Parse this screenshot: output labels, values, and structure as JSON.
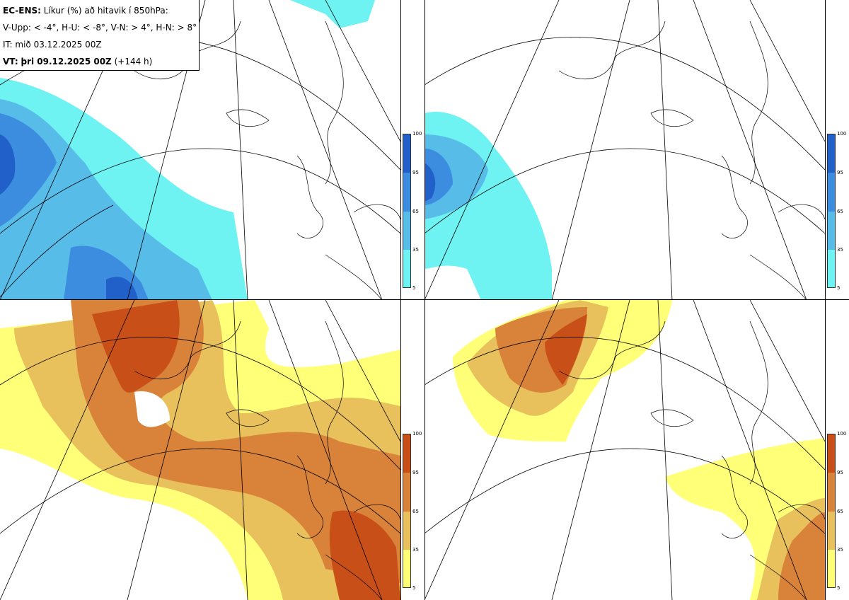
{
  "header": {
    "product": "EC-ENS:",
    "title": "Líkur (%) að hitavik í 850hPa:",
    "thresholds": "V-Upp: < -4°, H-U: < -8°, V-N: > 4°, H-N: > 8°",
    "initial_time": "IT: mið 03.12.2025 00Z",
    "valid_label": "VT:",
    "valid_time": "þri 09.12.2025 00Z",
    "lead_time": "(+144 h)"
  },
  "legend_cold": {
    "ticks": [
      "100",
      "95",
      "65",
      "35",
      "5"
    ],
    "colors": [
      "#2060c8",
      "#3c8ce0",
      "#58bce8",
      "#6ef2f2"
    ]
  },
  "legend_warm": {
    "ticks": [
      "100",
      "95",
      "65",
      "35",
      "5"
    ],
    "colors": [
      "#c85018",
      "#d8823a",
      "#e8c05c",
      "#ffff78"
    ]
  },
  "panels": [
    {
      "id": "upper-left",
      "field": "V-Upp",
      "palette": "cold"
    },
    {
      "id": "upper-right",
      "field": "H-U",
      "palette": "cold"
    },
    {
      "id": "lower-left",
      "field": "V-N",
      "palette": "warm"
    },
    {
      "id": "lower-right",
      "field": "H-N",
      "palette": "warm"
    }
  ]
}
